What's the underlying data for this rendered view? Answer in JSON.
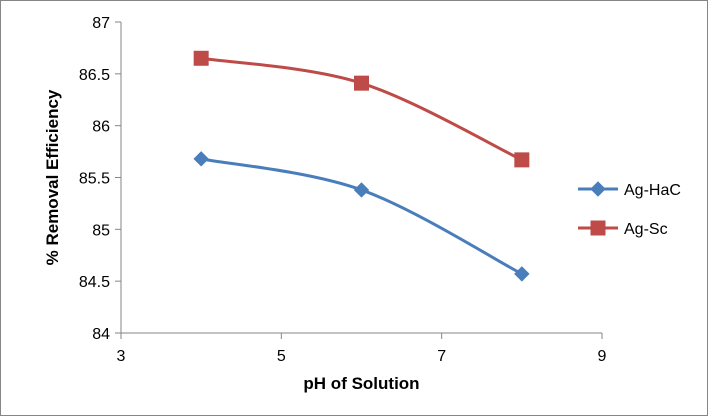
{
  "chart_data": {
    "type": "line",
    "title": "",
    "xlabel": "pH of Solution",
    "ylabel": "% Removal Efficiency",
    "xlim": [
      3,
      9
    ],
    "ylim": [
      84,
      87
    ],
    "xticks": [
      3,
      5,
      7,
      9
    ],
    "yticks": [
      84,
      84.5,
      85,
      85.5,
      86,
      86.5,
      87
    ],
    "grid": false,
    "legend_position": "right",
    "smooth": true,
    "series": [
      {
        "name": "Ag-HaC",
        "marker": "diamond",
        "color": "#4a7ebb",
        "x": [
          4,
          6,
          8
        ],
        "y": [
          85.68,
          85.38,
          84.57
        ]
      },
      {
        "name": "Ag-Sc",
        "marker": "square",
        "color": "#be4b48",
        "x": [
          4,
          6,
          8
        ],
        "y": [
          86.65,
          86.41,
          85.67
        ]
      }
    ]
  }
}
